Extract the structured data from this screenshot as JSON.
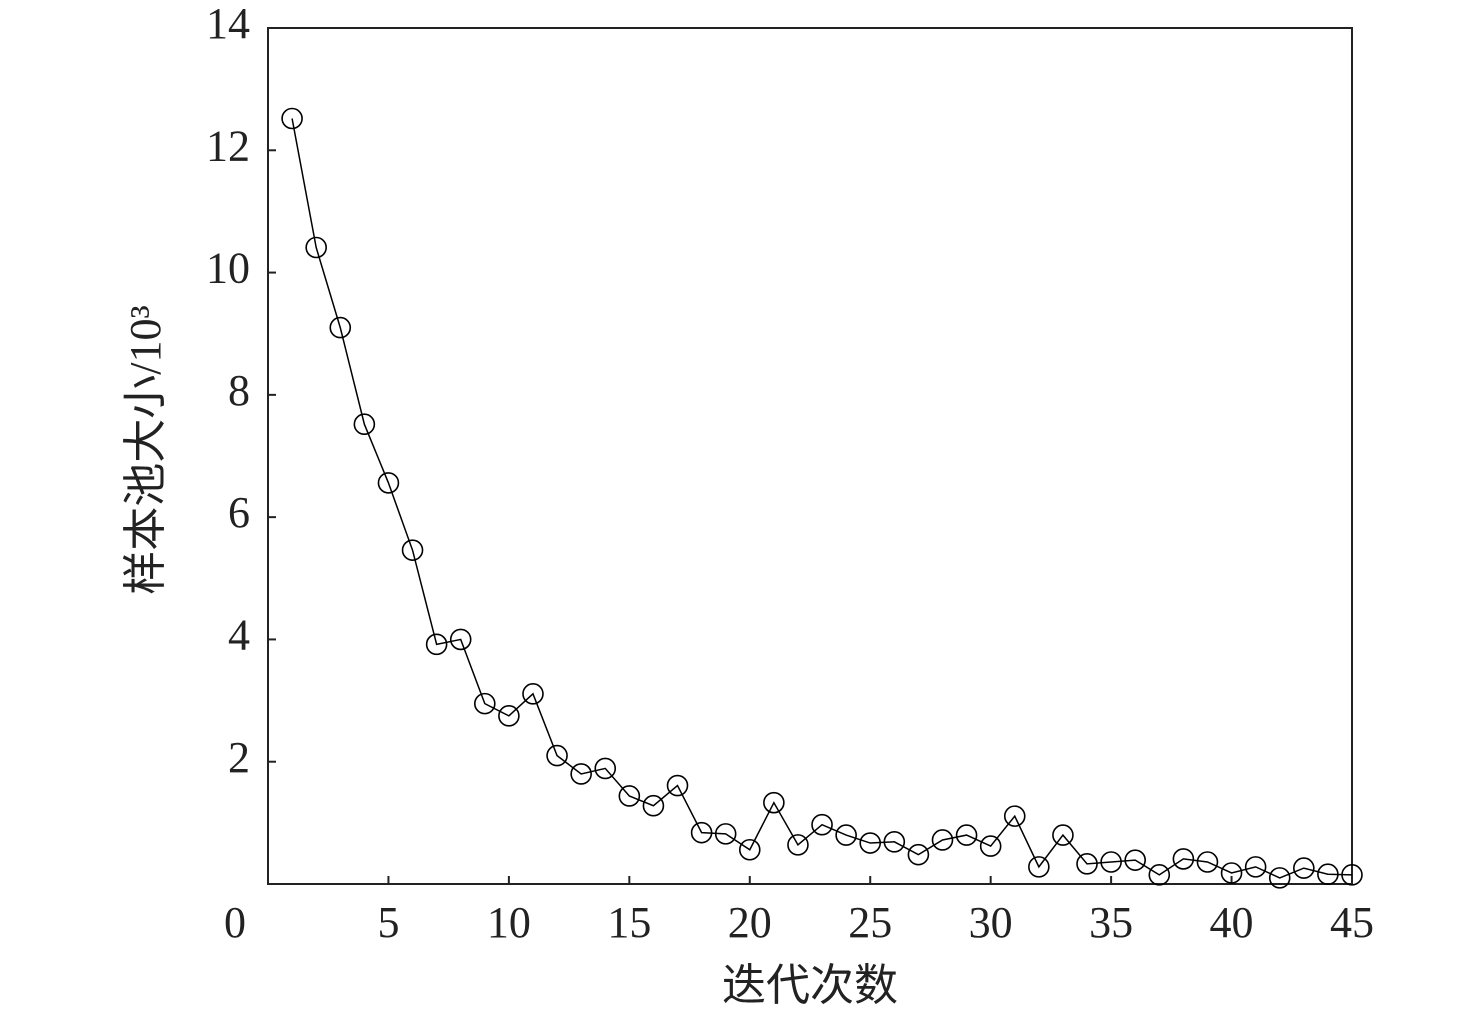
{
  "chart_data": {
    "type": "line",
    "x_label": "迭代次数",
    "y_label": "样本池大小/10³",
    "x": [
      1,
      2,
      3,
      4,
      5,
      6,
      7,
      8,
      9,
      10,
      11,
      12,
      13,
      14,
      15,
      16,
      17,
      18,
      19,
      20,
      21,
      22,
      23,
      24,
      25,
      26,
      27,
      28,
      29,
      30,
      31,
      32,
      33,
      34,
      35,
      36,
      37,
      38,
      39,
      40,
      41,
      42,
      43,
      44,
      45
    ],
    "series": [
      {
        "color": "#000000",
        "values": [
          12.52,
          10.41,
          9.1,
          7.52,
          6.56,
          5.46,
          3.92,
          4.0,
          2.95,
          2.75,
          3.11,
          2.1,
          1.8,
          1.89,
          1.44,
          1.28,
          1.61,
          0.84,
          0.82,
          0.56,
          1.33,
          0.64,
          0.97,
          0.8,
          0.67,
          0.69,
          0.48,
          0.72,
          0.8,
          0.62,
          1.11,
          0.28,
          0.8,
          0.33,
          0.36,
          0.39,
          0.15,
          0.41,
          0.36,
          0.18,
          0.28,
          0.1,
          0.26,
          0.16,
          0.15
        ]
      }
    ],
    "xlim": [
      0,
      45
    ],
    "xticks": [
      0,
      5,
      10,
      15,
      20,
      25,
      30,
      35,
      40,
      45
    ],
    "ylim": [
      0,
      14
    ],
    "yticks": [
      2,
      4,
      6,
      8,
      10,
      12,
      14
    ],
    "marker": "circle",
    "grid": false
  }
}
